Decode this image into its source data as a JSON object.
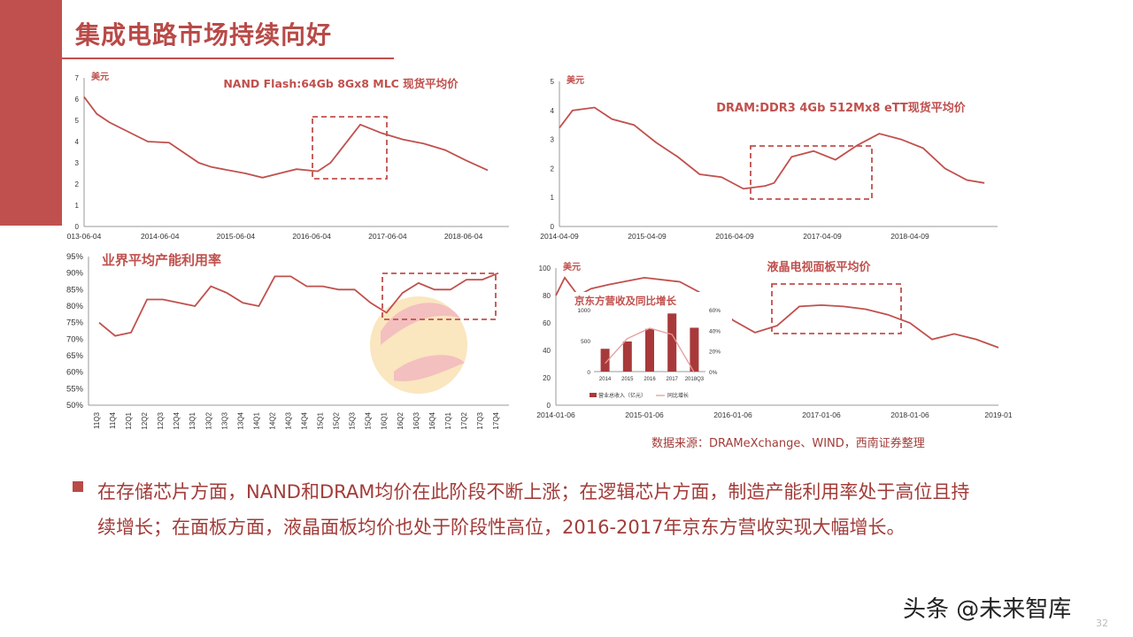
{
  "slide": {
    "title": "集成电路市场持续向好",
    "source_note": "数据来源：DRAMeXchange、WIND，西南证券整理",
    "bullet_text": "在存储芯片方面，NAND和DRAM均价在此阶段不断上涨；在逻辑芯片方面，制造产能利用率处于高位且持续增长；在面板方面，液晶面板均价也处于阶段性高位，2016-2017年京东方营收实现大幅增长。",
    "footer_brand": "头条 @未来智库",
    "page_number": "32",
    "accent_color": "#c0504d",
    "line_color": "#c0504d"
  },
  "chart_data": [
    {
      "type": "line",
      "title": "NAND Flash:64Gb 8Gx8 MLC 现货平均价",
      "unit": "美元",
      "ylim": [
        0,
        7
      ],
      "yticks": [
        "0",
        "1",
        "2",
        "3",
        "4",
        "5",
        "6",
        "7"
      ],
      "xticks": [
        "013-06-04",
        "2014-06-04",
        "2015-06-04",
        "2016-06-04",
        "2017-06-04",
        "2018-06-04"
      ],
      "x": [
        0,
        0.03,
        0.06,
        0.1,
        0.15,
        0.2,
        0.27,
        0.3,
        0.38,
        0.42,
        0.47,
        0.5,
        0.55,
        0.58,
        0.65,
        0.7,
        0.75,
        0.8,
        0.85,
        0.9,
        0.95
      ],
      "y": [
        6.1,
        5.3,
        4.9,
        4.5,
        4.0,
        3.95,
        3.0,
        2.8,
        2.5,
        2.3,
        2.55,
        2.7,
        2.6,
        3.0,
        4.8,
        4.4,
        4.1,
        3.9,
        3.6,
        3.1,
        2.65
      ]
    },
    {
      "type": "line",
      "title": "DRAM:DDR3 4Gb 512Mx8 eTT现货平均价",
      "unit": "美元",
      "ylim": [
        0,
        5
      ],
      "yticks": [
        "0",
        "1",
        "2",
        "3",
        "4",
        "5"
      ],
      "xticks": [
        "2014-04-09",
        "2015-04-09",
        "2016-04-09",
        "2017-04-09",
        "2018-04-09"
      ],
      "x": [
        0,
        0.03,
        0.08,
        0.12,
        0.17,
        0.22,
        0.27,
        0.32,
        0.37,
        0.42,
        0.47,
        0.49,
        0.53,
        0.58,
        0.63,
        0.68,
        0.73,
        0.78,
        0.83,
        0.88,
        0.93,
        0.97
      ],
      "y": [
        3.4,
        4.0,
        4.1,
        3.7,
        3.5,
        2.9,
        2.4,
        1.8,
        1.7,
        1.3,
        1.4,
        1.5,
        2.4,
        2.6,
        2.3,
        2.8,
        3.2,
        3.0,
        2.7,
        2.0,
        1.6,
        1.5
      ]
    },
    {
      "type": "line",
      "title": "业界平均产能利用率",
      "ylim": [
        50,
        95
      ],
      "yticks": [
        "50%",
        "55%",
        "60%",
        "65%",
        "70%",
        "75%",
        "80%",
        "85%",
        "90%",
        "95%"
      ],
      "categories": [
        "11Q3",
        "11Q4",
        "12Q1",
        "12Q2",
        "12Q3",
        "12Q4",
        "13Q1",
        "13Q2",
        "13Q3",
        "13Q4",
        "14Q1",
        "14Q2",
        "14Q3",
        "14Q4",
        "15Q1",
        "15Q2",
        "15Q3",
        "15Q4",
        "16Q1",
        "16Q2",
        "16Q3",
        "16Q4",
        "17Q1",
        "17Q2",
        "17Q3",
        "17Q4"
      ],
      "values": [
        75,
        71,
        72,
        82,
        82,
        81,
        80,
        86,
        84,
        81,
        80,
        89,
        89,
        86,
        86,
        85,
        85,
        81,
        78,
        84,
        87,
        85,
        85,
        88,
        88,
        90
      ]
    },
    {
      "type": "line",
      "title": "液晶电视面板平均价",
      "unit": "美元",
      "ylim": [
        0,
        100
      ],
      "yticks": [
        "0",
        "20",
        "40",
        "60",
        "80",
        "100"
      ],
      "xticks": [
        "2014-01-06",
        "2015-01-06",
        "2016-01-06",
        "2017-01-06",
        "2018-01-06",
        "2019-01"
      ],
      "x": [
        0,
        0.02,
        0.05,
        0.08,
        0.12,
        0.2,
        0.28,
        0.35,
        0.4,
        0.45,
        0.5,
        0.55,
        0.6,
        0.65,
        0.7,
        0.75,
        0.8,
        0.85,
        0.9,
        0.95,
        1.0
      ],
      "y": [
        80,
        93,
        80,
        85,
        88,
        93,
        90,
        78,
        62,
        53,
        58,
        72,
        73,
        72,
        70,
        66,
        60,
        48,
        52,
        48,
        42
      ]
    },
    {
      "type": "bar",
      "title": "京东方营收及同比增长",
      "categories": [
        "2014",
        "2015",
        "2016",
        "2017",
        "2018Q3"
      ],
      "series": [
        {
          "name": "营业总收入（亿元）",
          "values": [
            368,
            486,
            689,
            938,
            708
          ]
        },
        {
          "name": "同比增长",
          "values": [
            8,
            32,
            42,
            36,
            -1
          ]
        }
      ],
      "y_left_ticks": [
        "0",
        "500",
        "1000"
      ],
      "y_right_ticks": [
        "0%",
        "20%",
        "40%",
        "60%"
      ]
    }
  ]
}
